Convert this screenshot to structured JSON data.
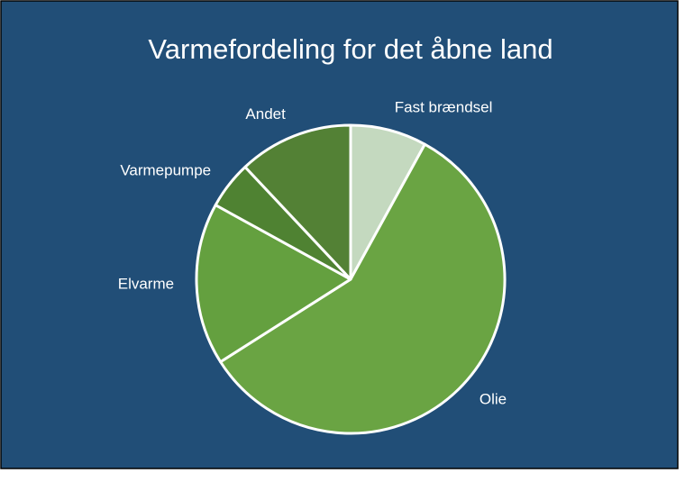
{
  "chart_data": {
    "type": "pie",
    "title": "Varmefordeling for det åbne land",
    "categories": [
      "Fast brændsel",
      "Olie",
      "Elvarme",
      "Varmepumpe",
      "Andet"
    ],
    "values": [
      8,
      58,
      17,
      5,
      12
    ],
    "colors": [
      "#c4d9bf",
      "#6aa443",
      "#64a03f",
      "#4f8232",
      "#538135"
    ]
  }
}
